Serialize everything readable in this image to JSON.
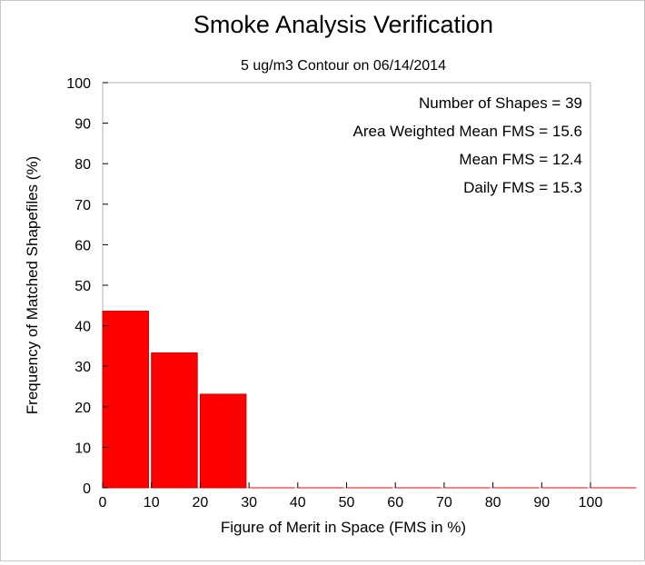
{
  "chart_data": {
    "type": "bar",
    "title": "Smoke Analysis Verification",
    "subtitle": "5 ug/m3 Contour on 06/14/2014",
    "xlabel": "Figure of Merit in Space (FMS in %)",
    "ylabel": "Frequency of Matched Shapefiles (%)",
    "xlim": [
      0,
      100
    ],
    "ylim": [
      0,
      100
    ],
    "xticks": [
      "0",
      "10",
      "20",
      "30",
      "40",
      "50",
      "60",
      "70",
      "80",
      "90",
      "100"
    ],
    "yticks": [
      "0",
      "10",
      "20",
      "30",
      "40",
      "50",
      "60",
      "70",
      "80",
      "90",
      "100"
    ],
    "bins": [
      {
        "start": 0,
        "end": 9.4,
        "value": 43.6
      },
      {
        "start": 10,
        "end": 19.4,
        "value": 33.3
      },
      {
        "start": 20,
        "end": 29.4,
        "value": 23.1
      },
      {
        "start": 30,
        "end": 39.4,
        "value": 0
      },
      {
        "start": 40,
        "end": 49.4,
        "value": 0
      },
      {
        "start": 50,
        "end": 59.4,
        "value": 0
      },
      {
        "start": 60,
        "end": 69.4,
        "value": 0
      },
      {
        "start": 70,
        "end": 79.4,
        "value": 0
      },
      {
        "start": 80,
        "end": 89.4,
        "value": 0
      },
      {
        "start": 90,
        "end": 99.4,
        "value": 0
      },
      {
        "start": 100,
        "end": 109.4,
        "value": 0
      }
    ],
    "bar_color": "#ff0000",
    "grid": false,
    "annotations": [
      "Number of Shapes = 39",
      "Area Weighted Mean FMS = 15.6",
      "Mean FMS = 12.4",
      "Daily FMS = 15.3"
    ]
  }
}
